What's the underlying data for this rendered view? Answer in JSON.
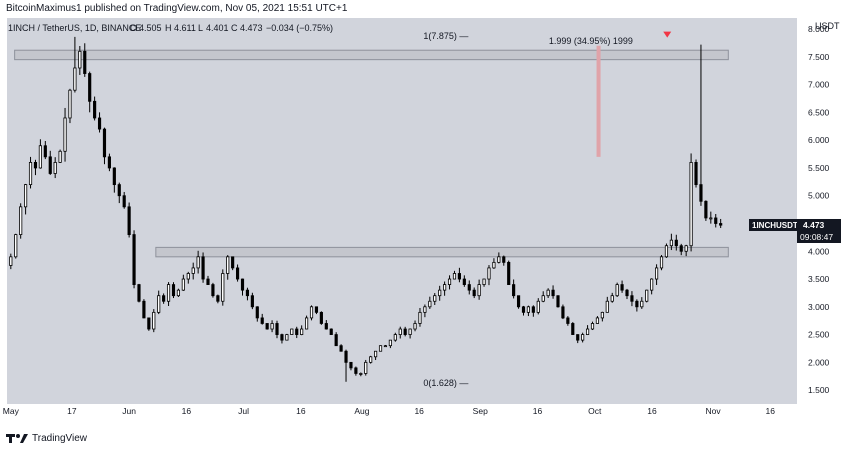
{
  "header": {
    "author_line": "BitcoinMaximus1 published on TradingView.com, Nov 05, 2021 15:51 UTC+1"
  },
  "legend": {
    "symbol": "1INCH / TetherUS, 1D, BINANCE",
    "open_label": "O",
    "open": "4.505",
    "high_label": "H",
    "high": "4.611",
    "low_label": "L",
    "low": "4.401",
    "close_label": "C",
    "close": "4.473",
    "change": "−0.034 (−0.75%)"
  },
  "footer": {
    "brand": "TradingView"
  },
  "chart_data": {
    "type": "candlestick",
    "currency_label": "USDT",
    "ylim": [
      1.25,
      8.2
    ],
    "y_ticks": [
      8.0,
      7.5,
      7.0,
      6.5,
      6.0,
      5.5,
      5.0,
      4.5,
      4.0,
      3.5,
      3.0,
      2.5,
      2.0,
      1.5
    ],
    "y_tick_labels": [
      "8.000",
      "7.500",
      "7.000",
      "6.500",
      "6.000",
      "5.500",
      "5.000",
      "4.500",
      "4.000",
      "3.500",
      "3.000",
      "2.500",
      "2.000",
      "1.500"
    ],
    "x_ticks": [
      {
        "label": "May",
        "day": 0
      },
      {
        "label": "17",
        "day": 16
      },
      {
        "label": "Jun",
        "day": 31
      },
      {
        "label": "16",
        "day": 46
      },
      {
        "label": "Jul",
        "day": 61
      },
      {
        "label": "16",
        "day": 76
      },
      {
        "label": "Aug",
        "day": 92
      },
      {
        "label": "16",
        "day": 107
      },
      {
        "label": "Sep",
        "day": 123
      },
      {
        "label": "16",
        "day": 138
      },
      {
        "label": "Oct",
        "day": 153
      },
      {
        "label": "16",
        "day": 168
      },
      {
        "label": "Nov",
        "day": 184
      },
      {
        "label": "16",
        "day": 199
      }
    ],
    "xlim": [
      -1,
      206
    ],
    "close_series": [
      3.9,
      4.3,
      4.8,
      5.2,
      5.6,
      5.5,
      5.9,
      5.7,
      5.4,
      5.6,
      5.8,
      6.4,
      6.9,
      7.3,
      7.6,
      7.2,
      6.7,
      6.4,
      6.2,
      5.7,
      5.5,
      5.2,
      5.0,
      4.8,
      4.3,
      3.4,
      3.1,
      2.8,
      2.6,
      2.9,
      3.2,
      3.1,
      3.4,
      3.2,
      3.3,
      3.5,
      3.6,
      3.7,
      3.9,
      3.5,
      3.4,
      3.2,
      3.1,
      3.6,
      3.9,
      3.7,
      3.5,
      3.3,
      3.2,
      3.0,
      2.8,
      2.7,
      2.6,
      2.7,
      2.5,
      2.4,
      2.5,
      2.6,
      2.5,
      2.6,
      2.8,
      3.0,
      2.9,
      2.7,
      2.6,
      2.5,
      2.3,
      2.2,
      2.0,
      1.9,
      1.8,
      1.8,
      2.0,
      2.1,
      2.2,
      2.3,
      2.3,
      2.4,
      2.5,
      2.6,
      2.5,
      2.6,
      2.7,
      2.9,
      3.0,
      3.1,
      3.2,
      3.3,
      3.4,
      3.5,
      3.6,
      3.5,
      3.4,
      3.3,
      3.2,
      3.4,
      3.5,
      3.7,
      3.8,
      3.9,
      3.8,
      3.4,
      3.2,
      3.0,
      2.9,
      3.0,
      2.9,
      3.1,
      3.2,
      3.3,
      3.2,
      3.0,
      2.8,
      2.7,
      2.5,
      2.4,
      2.5,
      2.6,
      2.7,
      2.8,
      2.9,
      3.1,
      3.2,
      3.4,
      3.3,
      3.2,
      3.1,
      3.0,
      3.1,
      3.3,
      3.5,
      3.7,
      3.9,
      4.1,
      4.2,
      4.1,
      4.0,
      4.1,
      5.6,
      5.2,
      4.9,
      4.6,
      4.6,
      4.5,
      4.47
    ],
    "candles_note": "approximate",
    "price_label": {
      "symbol": "1INCHUSDT",
      "value": "4.473",
      "countdown": "09:08:47",
      "price": 4.473
    },
    "zones": [
      {
        "from": 7.45,
        "to": 7.62,
        "x_from_day": 1,
        "x_to_day": 188
      },
      {
        "from": 3.9,
        "to": 4.07,
        "x_from_day": 38,
        "x_to_day": 188
      }
    ],
    "fib_levels": [
      {
        "label": "1(7.875) —",
        "value": 7.875,
        "day": 114
      },
      {
        "label": "0(1.628) —",
        "value": 1.628,
        "day": 114
      }
    ],
    "measure": {
      "label": "1.999 (34.95%) 1999",
      "value": 7.44,
      "day": 152,
      "bar_from": 5.7,
      "bar_to": 7.7,
      "bar_day": 154
    },
    "marker": {
      "day": 172,
      "value": 7.72
    },
    "colors": {
      "background": "#ffffff",
      "plot_bg": "#d1d4dc",
      "candle": "#000000",
      "up_body": "#ffffff",
      "zone": "#c4c6cd",
      "zone_border": "#8e919b",
      "measure_bar": "#e0a3a9",
      "marker": "#f23645",
      "axis_text": "#131722",
      "price_label_bg": "#131722"
    }
  }
}
